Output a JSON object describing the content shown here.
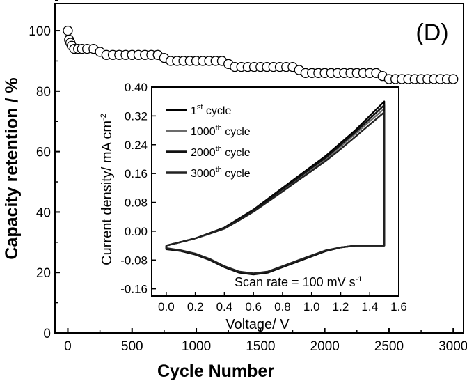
{
  "chart_data": [
    {
      "type": "scatter",
      "panel_label": "(D)",
      "xlabel": "Cycle Number",
      "ylabel": "Capacity retention / %",
      "xlim": [
        -100,
        3080
      ],
      "ylim": [
        0,
        109
      ],
      "xticks": [
        0,
        500,
        1000,
        1500,
        2000,
        2500,
        3000
      ],
      "yticks": [
        0,
        20,
        40,
        60,
        80,
        100
      ],
      "marker": "open-circle",
      "series": [
        {
          "x": [
            0,
            10,
            20,
            30,
            50,
            80,
            110,
            150,
            200,
            250,
            300,
            350,
            400,
            450,
            500,
            550,
            600,
            650,
            700,
            750,
            800,
            850,
            900,
            950,
            1000,
            1050,
            1100,
            1150,
            1200,
            1250,
            1300,
            1350,
            1400,
            1450,
            1500,
            1550,
            1600,
            1650,
            1700,
            1750,
            1800,
            1850,
            1900,
            1950,
            2000,
            2050,
            2100,
            2150,
            2200,
            2250,
            2300,
            2350,
            2400,
            2450,
            2500,
            2550,
            2600,
            2650,
            2700,
            2750,
            2800,
            2850,
            2900,
            2950,
            3000
          ],
          "y": [
            100,
            97,
            96,
            95,
            94,
            94,
            94,
            94,
            94,
            93,
            92,
            92,
            92,
            92,
            92,
            92,
            92,
            92,
            92,
            91,
            90,
            90,
            90,
            90,
            90,
            90,
            90,
            90,
            90,
            89,
            88,
            88,
            88,
            88,
            88,
            88,
            88,
            88,
            88,
            88,
            87,
            86,
            86,
            86,
            86,
            86,
            86,
            86,
            86,
            86,
            86,
            86,
            86,
            85,
            84,
            84,
            84,
            84,
            84,
            84,
            84,
            84,
            84,
            84,
            84
          ]
        }
      ]
    },
    {
      "type": "line",
      "inset": true,
      "xlabel": "Voltage/ V",
      "ylabel": "Current density/ mA cm",
      "ylabel_sup": "-2",
      "xlim": [
        -0.1,
        1.6
      ],
      "ylim": [
        -0.18,
        0.4
      ],
      "xticks": [
        0.0,
        0.2,
        0.4,
        0.6,
        0.8,
        1.0,
        1.2,
        1.4,
        1.6
      ],
      "xtick_labels": [
        "0.0",
        "0.2",
        "0.4",
        "0.6",
        "0.8",
        "1.0",
        "1.2",
        "1.4",
        "1.6"
      ],
      "yticks": [
        -0.16,
        -0.08,
        0.0,
        0.08,
        0.16,
        0.24,
        0.32,
        0.4
      ],
      "ytick_labels": [
        "-0.16",
        "-0.08",
        "0.00",
        "0.08",
        "0.16",
        "0.24",
        "0.32",
        "0.40"
      ],
      "annotation": {
        "text": "Scan rate = 100 mV s",
        "sup": "-1"
      },
      "legend_position": "top-left",
      "series": [
        {
          "name": "1st cycle",
          "num": "1",
          "sup": "st",
          "rest": " cycle",
          "color": "#000000",
          "forward": {
            "x": [
              0.0,
              0.1,
              0.2,
              0.3,
              0.4,
              0.5,
              0.6,
              0.7,
              0.8,
              0.9,
              1.0,
              1.1,
              1.2,
              1.3,
              1.4,
              1.5
            ],
            "y": [
              -0.04,
              -0.03,
              -0.02,
              -0.005,
              0.01,
              0.035,
              0.06,
              0.09,
              0.12,
              0.15,
              0.18,
              0.21,
              0.245,
              0.28,
              0.32,
              0.36
            ]
          },
          "reverse": {
            "x": [
              1.5,
              1.5,
              1.4,
              1.3,
              1.2,
              1.1,
              1.0,
              0.9,
              0.8,
              0.7,
              0.6,
              0.5,
              0.4,
              0.3,
              0.2,
              0.1,
              0.0
            ],
            "y": [
              0.36,
              -0.04,
              -0.04,
              -0.04,
              -0.045,
              -0.055,
              -0.07,
              -0.085,
              -0.1,
              -0.115,
              -0.12,
              -0.115,
              -0.1,
              -0.08,
              -0.065,
              -0.055,
              -0.05
            ]
          }
        },
        {
          "name": "1000th cycle",
          "num": "1000",
          "sup": "th",
          "rest": " cycle",
          "color": "#6b6b6b",
          "forward": {
            "x": [
              0.0,
              0.1,
              0.2,
              0.3,
              0.4,
              0.5,
              0.6,
              0.7,
              0.8,
              0.9,
              1.0,
              1.1,
              1.2,
              1.3,
              1.4,
              1.5
            ],
            "y": [
              -0.04,
              -0.03,
              -0.02,
              -0.006,
              0.008,
              0.032,
              0.056,
              0.085,
              0.114,
              0.143,
              0.172,
              0.201,
              0.235,
              0.27,
              0.305,
              0.34
            ]
          },
          "reverse": {
            "x": [
              1.5,
              1.5,
              1.4,
              1.3,
              1.2,
              1.1,
              1.0,
              0.9,
              0.8,
              0.7,
              0.6,
              0.5,
              0.4,
              0.3,
              0.2,
              0.1,
              0.0
            ],
            "y": [
              0.34,
              -0.04,
              -0.04,
              -0.04,
              -0.045,
              -0.054,
              -0.068,
              -0.083,
              -0.098,
              -0.113,
              -0.118,
              -0.113,
              -0.098,
              -0.078,
              -0.063,
              -0.054,
              -0.048
            ]
          }
        },
        {
          "name": "2000th cycle",
          "num": "2000",
          "sup": "th",
          "rest": " cycle",
          "color": "#111111",
          "forward": {
            "x": [
              0.0,
              0.1,
              0.2,
              0.3,
              0.4,
              0.5,
              0.6,
              0.7,
              0.8,
              0.9,
              1.0,
              1.1,
              1.2,
              1.3,
              1.4,
              1.5
            ],
            "y": [
              -0.04,
              -0.03,
              -0.02,
              -0.006,
              0.009,
              0.033,
              0.058,
              0.087,
              0.117,
              0.146,
              0.176,
              0.205,
              0.24,
              0.275,
              0.312,
              0.35
            ]
          },
          "reverse": {
            "x": [
              1.5,
              1.5,
              1.4,
              1.3,
              1.2,
              1.1,
              1.0,
              0.9,
              0.8,
              0.7,
              0.6,
              0.5,
              0.4,
              0.3,
              0.2,
              0.1,
              0.0
            ],
            "y": [
              0.35,
              -0.04,
              -0.04,
              -0.04,
              -0.045,
              -0.055,
              -0.069,
              -0.084,
              -0.099,
              -0.114,
              -0.119,
              -0.114,
              -0.099,
              -0.079,
              -0.064,
              -0.055,
              -0.049
            ]
          }
        },
        {
          "name": "3000th cycle",
          "num": "3000",
          "sup": "th",
          "rest": " cycle",
          "color": "#222222",
          "forward": {
            "x": [
              0.0,
              0.1,
              0.2,
              0.3,
              0.4,
              0.5,
              0.6,
              0.7,
              0.8,
              0.9,
              1.0,
              1.1,
              1.2,
              1.3,
              1.4,
              1.5
            ],
            "y": [
              -0.04,
              -0.03,
              -0.02,
              -0.007,
              0.007,
              0.03,
              0.054,
              0.082,
              0.11,
              0.139,
              0.167,
              0.196,
              0.228,
              0.262,
              0.296,
              0.33
            ]
          },
          "reverse": {
            "x": [
              1.5,
              1.5,
              1.4,
              1.3,
              1.2,
              1.1,
              1.0,
              0.9,
              0.8,
              0.7,
              0.6,
              0.5,
              0.4,
              0.3,
              0.2,
              0.1,
              0.0
            ],
            "y": [
              0.33,
              -0.04,
              -0.04,
              -0.04,
              -0.045,
              -0.053,
              -0.067,
              -0.082,
              -0.097,
              -0.112,
              -0.117,
              -0.112,
              -0.097,
              -0.077,
              -0.062,
              -0.053,
              -0.047
            ]
          }
        }
      ]
    }
  ]
}
